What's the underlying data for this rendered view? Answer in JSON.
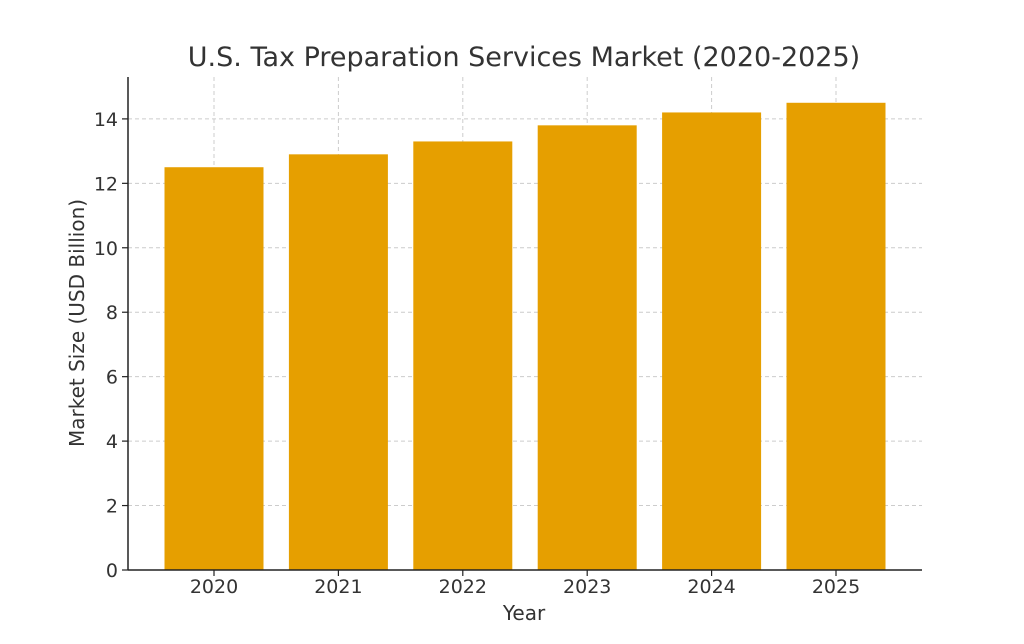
{
  "chart_data": {
    "type": "bar",
    "title": "U.S. Tax Preparation Services Market (2020-2025)",
    "xlabel": "Year",
    "ylabel": "Market Size (USD Billion)",
    "categories": [
      "2020",
      "2021",
      "2022",
      "2023",
      "2024",
      "2025"
    ],
    "values": [
      12.5,
      12.9,
      13.3,
      13.8,
      14.2,
      14.5
    ],
    "ylim": [
      0,
      15.3
    ],
    "yticks": [
      0,
      2,
      4,
      6,
      8,
      10,
      12,
      14
    ],
    "grid": true,
    "legend": "none",
    "bar_color": "#E69F00",
    "text_color": "#333333",
    "grid_color": "#cccccc"
  }
}
